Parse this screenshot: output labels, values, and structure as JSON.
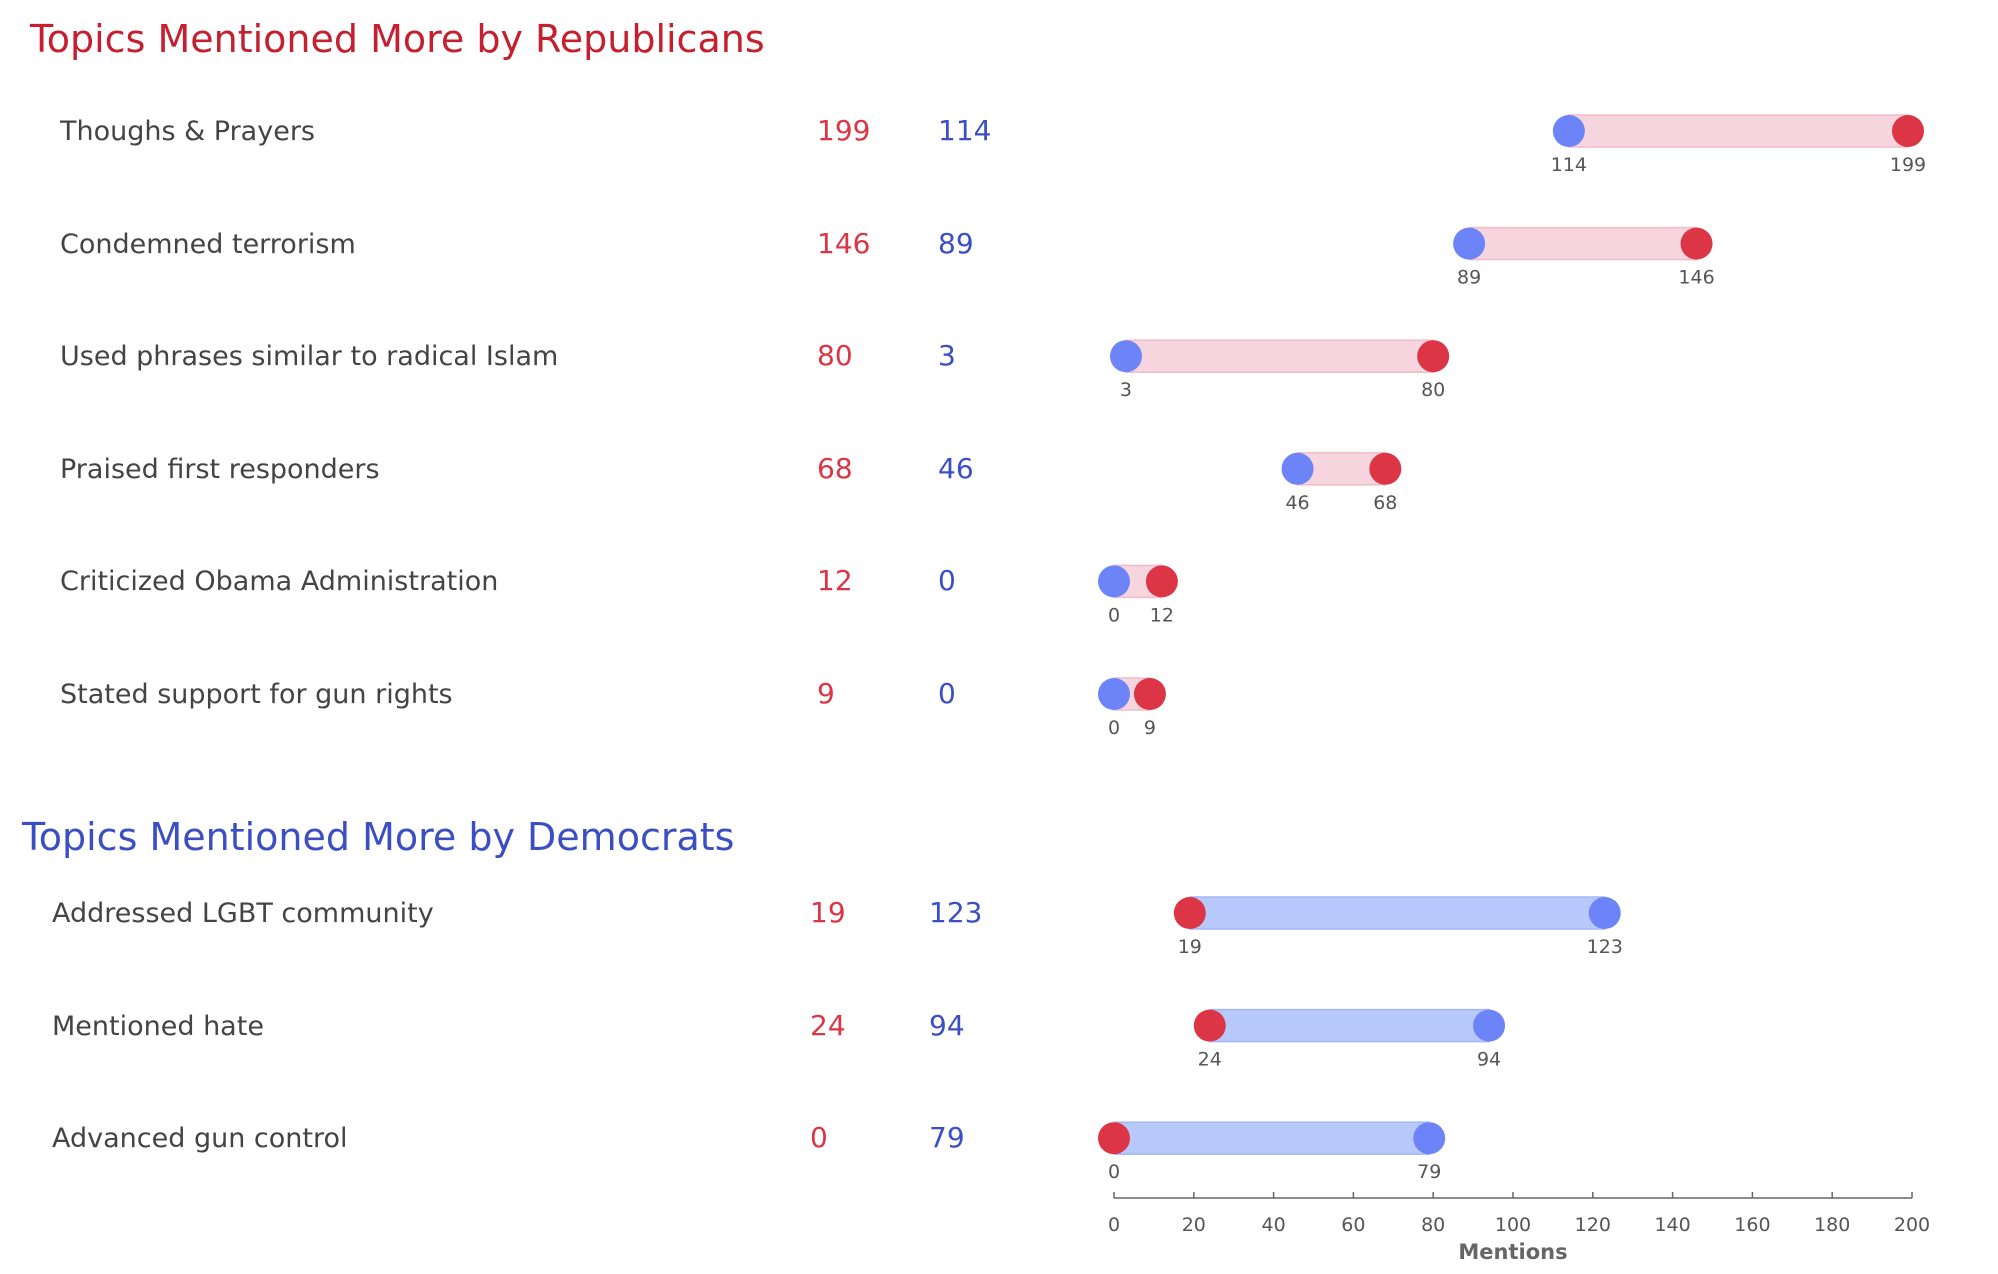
{
  "colors": {
    "republican": "#c4202f",
    "democrat": "#3b4ec4",
    "rep_dot": "#dc3545",
    "dem_dot": "#6c84f8",
    "rep_bar": "#f6d5df",
    "dem_bar": "#b7c8fb",
    "label_text": "#444444",
    "axis": "#666666"
  },
  "sections": [
    {
      "title": "Topics Mentioned More by Republicans",
      "party_color": "republican"
    },
    {
      "title": "Topics Mentioned More by Democrats",
      "party_color": "democrat"
    }
  ],
  "chart_data": {
    "type": "dumbbell",
    "series": [
      {
        "name": "",
        "color": "#dc3545"
      },
      {
        "name": "",
        "color": "#6c84f8"
      }
    ],
    "rows": [
      {
        "section": 0,
        "label": "Thoughs & Prayers",
        "rep": 199,
        "dem": 114,
        "rep_text": "199",
        "dem_text": "114"
      },
      {
        "section": 0,
        "label": "Condemned terrorism",
        "rep": 146,
        "dem": 89,
        "rep_text": "146",
        "dem_text": "89"
      },
      {
        "section": 0,
        "label": "Used phrases similar to radical Islam",
        "rep": 80,
        "dem": 3,
        "rep_text": "80",
        "dem_text": "3"
      },
      {
        "section": 0,
        "label": "Praised first responders",
        "rep": 68,
        "dem": 46,
        "rep_text": "68",
        "dem_text": "46"
      },
      {
        "section": 0,
        "label": "Criticized Obama Administration",
        "rep": 12,
        "dem": 0,
        "rep_text": "12",
        "dem_text": "0"
      },
      {
        "section": 0,
        "label": "Stated support for gun rights",
        "rep": 9,
        "dem": 0,
        "rep_text": "9",
        "dem_text": "0"
      },
      {
        "section": 1,
        "label": "Addressed LGBT community",
        "rep": 19,
        "dem": 123,
        "rep_text": "19",
        "dem_text": "123"
      },
      {
        "section": 1,
        "label": "Mentioned hate",
        "rep": 24,
        "dem": 94,
        "rep_text": "24",
        "dem_text": "94"
      },
      {
        "section": 1,
        "label": "Advanced gun control",
        "rep": 0,
        "dem": 79,
        "rep_text": "0",
        "dem_text": "79"
      }
    ],
    "x_axis": {
      "label": "Mentions",
      "min": 0,
      "max": 200,
      "ticks": [
        0,
        20,
        40,
        60,
        80,
        100,
        120,
        140,
        160,
        180,
        200
      ],
      "tick_labels": [
        "0",
        "20",
        "40",
        "60",
        "80",
        "100",
        "120",
        "140",
        "160",
        "180",
        "200"
      ]
    },
    "grid": false,
    "legend": "none"
  }
}
